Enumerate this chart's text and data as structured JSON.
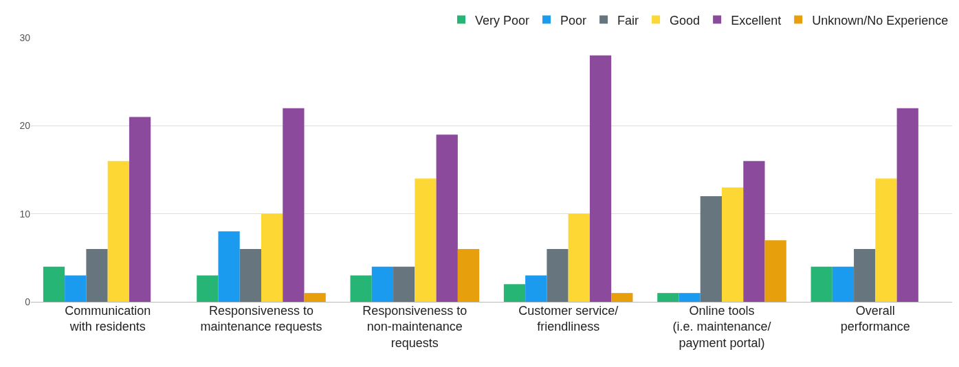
{
  "chart_data": {
    "type": "bar",
    "categories": [
      "Communication\nwith residents",
      "Responsiveness to\nmaintenance requests",
      "Responsiveness to\nnon-maintenance\nrequests",
      "Customer service/\nfriendliness",
      "Online tools\n(i.e. maintenance/\npayment portal)",
      "Overall\nperformance"
    ],
    "series": [
      {
        "name": "Very Poor",
        "color": "#26b574",
        "values": [
          4,
          3,
          3,
          2,
          1,
          4
        ]
      },
      {
        "name": "Poor",
        "color": "#1a9bf0",
        "values": [
          3,
          8,
          4,
          3,
          1,
          4
        ]
      },
      {
        "name": "Fair",
        "color": "#67757e",
        "values": [
          6,
          6,
          4,
          6,
          12,
          6
        ]
      },
      {
        "name": "Good",
        "color": "#fdd835",
        "values": [
          16,
          10,
          14,
          10,
          13,
          14
        ]
      },
      {
        "name": "Excellent",
        "color": "#8b4a9c",
        "values": [
          21,
          22,
          19,
          28,
          16,
          22
        ]
      },
      {
        "name": "Unknown/No Experience",
        "color": "#e89f0c",
        "values": [
          0,
          1,
          6,
          1,
          7,
          0
        ]
      }
    ],
    "ylim": [
      0,
      30
    ],
    "yticks": [
      0,
      10,
      20,
      30
    ],
    "grid": "y",
    "legend": "top right"
  }
}
